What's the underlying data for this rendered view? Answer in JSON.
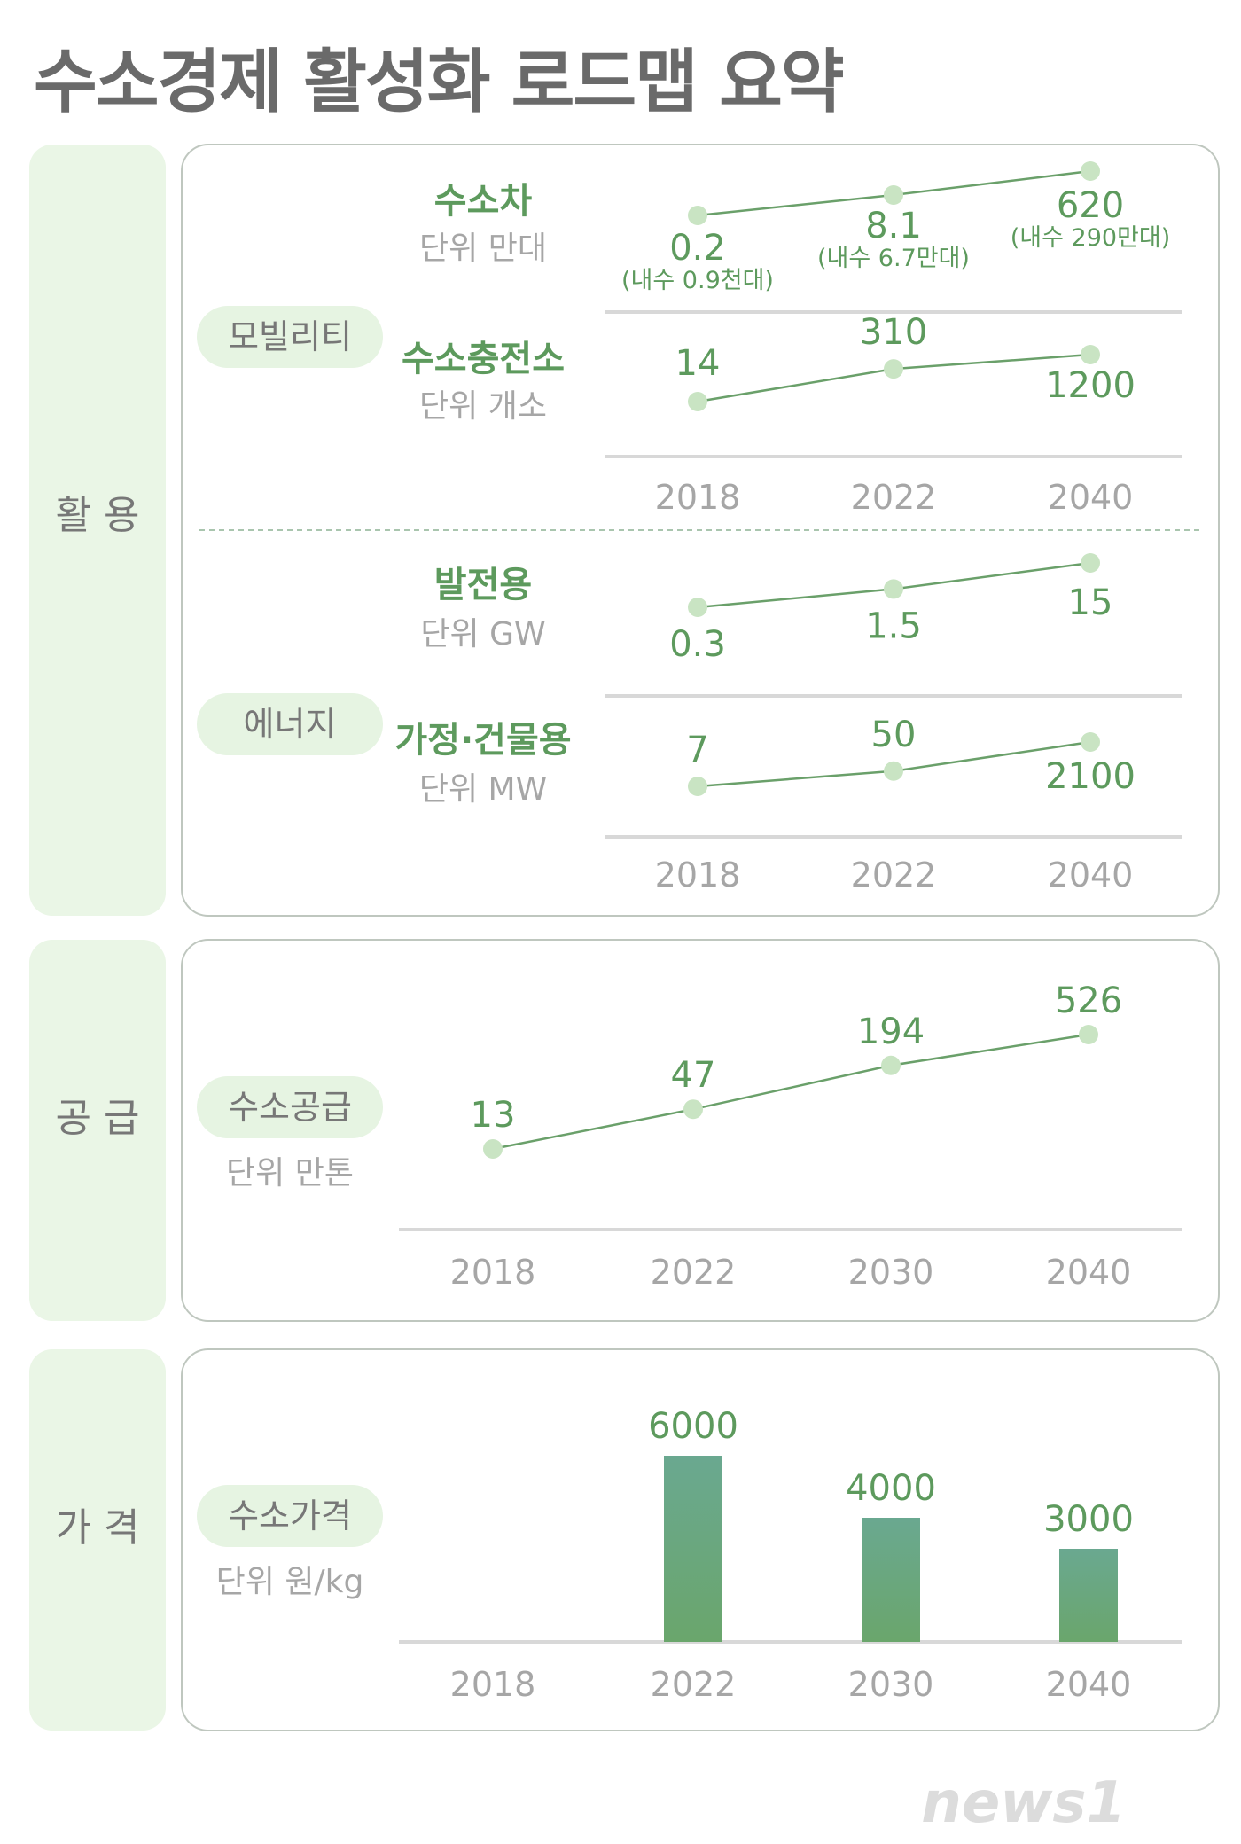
{
  "page_title": "수소경제 활성화 로드맵 요약",
  "sections": {
    "usage": "활 용",
    "supply": "공 급",
    "price": "가 격"
  },
  "categories": {
    "mobility": "모빌리티",
    "energy": "에너지",
    "supply": "수소공급",
    "price": "수소가격"
  },
  "colors": {
    "accent": "#5d9a5d",
    "line": "#6aa06a",
    "dot": "#c9e4c3",
    "pill": "#e6f4e2",
    "section_bg": "#eaf6e6",
    "bar": "#6aa380",
    "axis": "#d8d8d8",
    "muted": "#a6a6a6"
  },
  "logo_text": "news1",
  "chart_data": [
    {
      "type": "line",
      "title": "수소차",
      "unit": "단위 만대",
      "categories": [
        "2018",
        "2022",
        "2040"
      ],
      "values": [
        0.2,
        8.1,
        620
      ],
      "value_labels": [
        "0.2",
        "8.1",
        "620"
      ],
      "sub_labels": [
        "(내수 0.9천대)",
        "(내수 6.7만대)",
        "(내수 290만대)"
      ]
    },
    {
      "type": "line",
      "title": "수소충전소",
      "unit": "단위 개소",
      "categories": [
        "2018",
        "2022",
        "2040"
      ],
      "values": [
        14,
        310,
        1200
      ],
      "value_labels": [
        "14",
        "310",
        "1200"
      ]
    },
    {
      "type": "line",
      "title": "발전용",
      "unit": "단위 GW",
      "categories": [
        "2018",
        "2022",
        "2040"
      ],
      "values": [
        0.3,
        1.5,
        15
      ],
      "value_labels": [
        "0.3",
        "1.5",
        "15"
      ]
    },
    {
      "type": "line",
      "title": "가정·건물용",
      "unit": "단위 MW",
      "categories": [
        "2018",
        "2022",
        "2040"
      ],
      "values": [
        7,
        50,
        2100
      ],
      "value_labels": [
        "7",
        "50",
        "2100"
      ]
    },
    {
      "type": "line",
      "title": "",
      "unit": "단위 만톤",
      "categories": [
        "2018",
        "2022",
        "2030",
        "2040"
      ],
      "values": [
        13,
        47,
        194,
        526
      ],
      "value_labels": [
        "13",
        "47",
        "194",
        "526"
      ]
    },
    {
      "type": "bar",
      "title": "",
      "unit": "단위 원/kg",
      "categories": [
        "2018",
        "2022",
        "2030",
        "2040"
      ],
      "values": [
        null,
        6000,
        4000,
        3000
      ],
      "value_labels": [
        "",
        "6000",
        "4000",
        "3000"
      ]
    }
  ]
}
